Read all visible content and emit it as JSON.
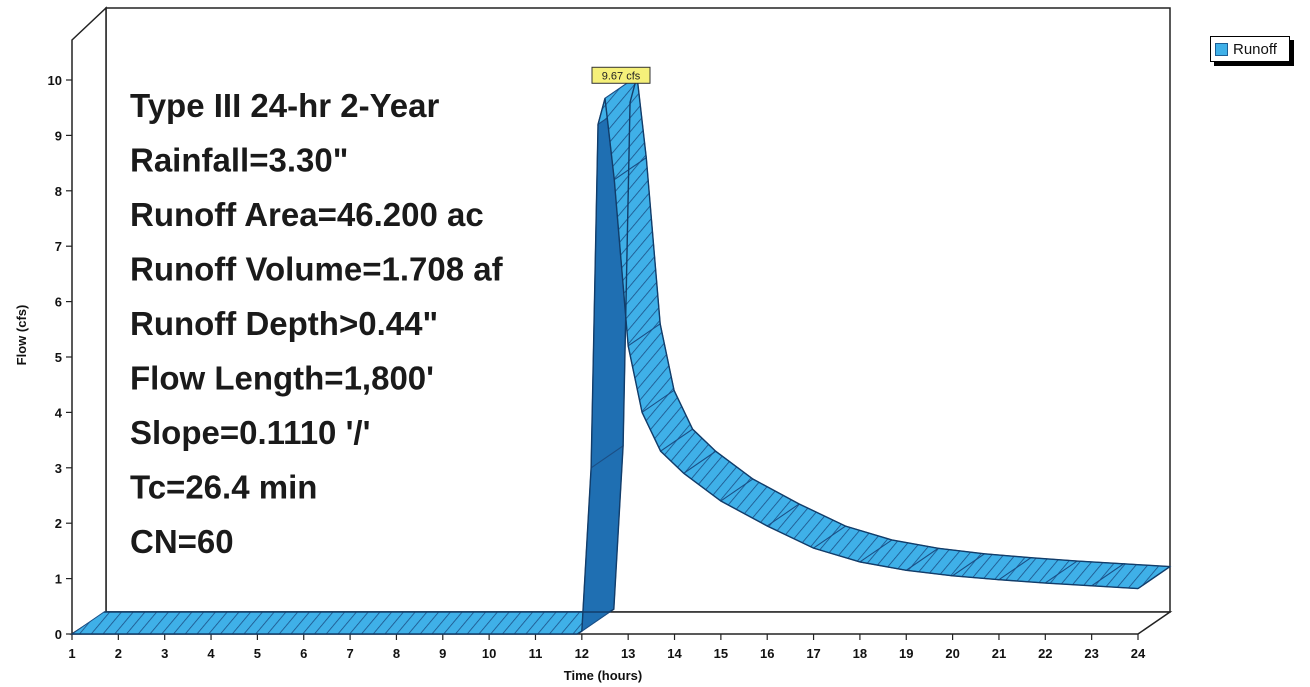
{
  "chart_data": {
    "type": "area",
    "title": "",
    "xlabel": "Time (hours)",
    "ylabel": "Flow (cfs)",
    "xlim": [
      1,
      24
    ],
    "ylim": [
      0,
      10
    ],
    "x_ticks": [
      "1",
      "2",
      "3",
      "4",
      "5",
      "6",
      "7",
      "8",
      "9",
      "10",
      "11",
      "12",
      "13",
      "14",
      "15",
      "16",
      "17",
      "18",
      "19",
      "20",
      "21",
      "22",
      "23",
      "24"
    ],
    "y_ticks": [
      "0",
      "1",
      "2",
      "3",
      "4",
      "5",
      "6",
      "7",
      "8",
      "9",
      "10"
    ],
    "legend_position": "top-right, outside plot",
    "grid": false,
    "series": [
      {
        "name": "Runoff",
        "color": "#3fb0e8",
        "x": [
          1,
          11.9,
          12.0,
          12.2,
          12.35,
          12.5,
          12.7,
          13.0,
          13.3,
          13.7,
          14.2,
          15.0,
          16.0,
          17.0,
          18.0,
          19.0,
          20.0,
          21.0,
          22.0,
          23.0,
          24.0
        ],
        "y": [
          0,
          0.0,
          0.05,
          3.0,
          9.2,
          9.67,
          8.2,
          5.2,
          4.0,
          3.3,
          2.9,
          2.4,
          1.95,
          1.55,
          1.3,
          1.15,
          1.05,
          0.98,
          0.92,
          0.87,
          0.82
        ]
      }
    ],
    "annotations": {
      "peak_label": "9.67 cfs",
      "peak_x": 12.5,
      "peak_y": 9.67
    }
  },
  "info_lines": [
    "Type III 24-hr 2-Year",
    "Rainfall=3.30\"",
    "Runoff Area=46.200 ac",
    "Runoff Volume=1.708 af",
    "Runoff Depth>0.44\"",
    "Flow Length=1,800'",
    "Slope=0.1110 '/'",
    "Tc=26.4 min",
    "CN=60"
  ]
}
